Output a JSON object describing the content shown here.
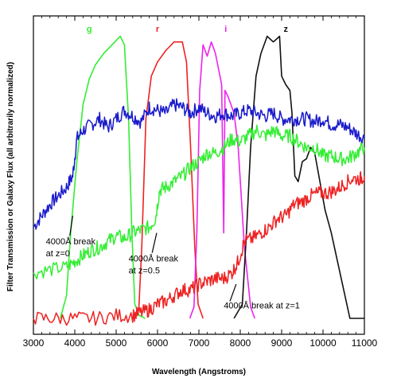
{
  "chart_data": {
    "type": "line",
    "title": "",
    "xlabel": "Wavelength (Angstroms)",
    "ylabel": "Filter Transmission or Galaxy Flux (all arbitrarily normalized)",
    "xlim": [
      3000,
      11000
    ],
    "ylim": [
      0,
      1
    ],
    "x_ticks": [
      "3000",
      "4000",
      "5000",
      "6000",
      "7000",
      "8000",
      "9000",
      "10000",
      "11000"
    ],
    "grid": false,
    "filters": [
      {
        "name": "g",
        "color": "#33ee33",
        "points": [
          [
            3650,
            0.0
          ],
          [
            3800,
            0.08
          ],
          [
            3900,
            0.3
          ],
          [
            4050,
            0.55
          ],
          [
            4200,
            0.75
          ],
          [
            4350,
            0.84
          ],
          [
            4500,
            0.89
          ],
          [
            4700,
            0.93
          ],
          [
            4900,
            0.96
          ],
          [
            5100,
            0.99
          ],
          [
            5200,
            0.96
          ],
          [
            5300,
            0.7
          ],
          [
            5380,
            0.3
          ],
          [
            5450,
            0.05
          ],
          [
            5560,
            0.01
          ],
          [
            5700,
            0.0
          ]
        ]
      },
      {
        "name": "r",
        "color": "#ee2222",
        "points": [
          [
            5450,
            0.0
          ],
          [
            5550,
            0.04
          ],
          [
            5620,
            0.25
          ],
          [
            5720,
            0.7
          ],
          [
            5850,
            0.85
          ],
          [
            6000,
            0.9
          ],
          [
            6200,
            0.94
          ],
          [
            6400,
            0.97
          ],
          [
            6600,
            0.97
          ],
          [
            6700,
            0.9
          ],
          [
            6800,
            0.6
          ],
          [
            6900,
            0.25
          ],
          [
            6980,
            0.05
          ],
          [
            7100,
            0.0
          ]
        ]
      },
      {
        "name": "i",
        "color": "#ee22ee",
        "points": [
          [
            6780,
            0.0
          ],
          [
            6880,
            0.04
          ],
          [
            6950,
            0.3
          ],
          [
            7020,
            0.8
          ],
          [
            7100,
            0.96
          ],
          [
            7200,
            0.92
          ],
          [
            7300,
            0.97
          ],
          [
            7400,
            0.93
          ],
          [
            7550,
            0.82
          ],
          [
            7600,
            0.3
          ],
          [
            7630,
            0.8
          ],
          [
            7700,
            0.78
          ],
          [
            7850,
            0.72
          ],
          [
            7950,
            0.6
          ],
          [
            8100,
            0.25
          ],
          [
            8250,
            0.04
          ],
          [
            8350,
            0.0
          ]
        ]
      },
      {
        "name": "z",
        "color": "#111111",
        "points": [
          [
            7850,
            0.0
          ],
          [
            8050,
            0.05
          ],
          [
            8150,
            0.3
          ],
          [
            8250,
            0.6
          ],
          [
            8380,
            0.85
          ],
          [
            8500,
            0.93
          ],
          [
            8650,
            0.99
          ],
          [
            8800,
            0.97
          ],
          [
            8950,
            0.99
          ],
          [
            9000,
            0.85
          ],
          [
            9100,
            0.82
          ],
          [
            9200,
            0.8
          ],
          [
            9250,
            0.72
          ],
          [
            9320,
            0.5
          ],
          [
            9400,
            0.48
          ],
          [
            9500,
            0.55
          ],
          [
            9600,
            0.56
          ],
          [
            9700,
            0.6
          ],
          [
            9800,
            0.58
          ],
          [
            9900,
            0.5
          ],
          [
            10050,
            0.38
          ],
          [
            10200,
            0.3
          ],
          [
            10350,
            0.2
          ],
          [
            10500,
            0.1
          ],
          [
            10650,
            0.0
          ],
          [
            11000,
            0.0
          ]
        ]
      }
    ],
    "series": [
      {
        "name": "z=0",
        "color": "#1a1acc",
        "points": [
          [
            3000,
            0.32
          ],
          [
            3200,
            0.36
          ],
          [
            3400,
            0.4
          ],
          [
            3600,
            0.43
          ],
          [
            3800,
            0.46
          ],
          [
            3950,
            0.5
          ],
          [
            4050,
            0.63
          ],
          [
            4200,
            0.66
          ],
          [
            4400,
            0.68
          ],
          [
            4600,
            0.7
          ],
          [
            4800,
            0.67
          ],
          [
            5000,
            0.7
          ],
          [
            5200,
            0.73
          ],
          [
            5400,
            0.71
          ],
          [
            5600,
            0.69
          ],
          [
            5800,
            0.74
          ],
          [
            6000,
            0.73
          ],
          [
            6200,
            0.72
          ],
          [
            6400,
            0.75
          ],
          [
            6600,
            0.74
          ],
          [
            6800,
            0.72
          ],
          [
            7000,
            0.74
          ],
          [
            7200,
            0.72
          ],
          [
            7400,
            0.71
          ],
          [
            7600,
            0.72
          ],
          [
            7800,
            0.71
          ],
          [
            8000,
            0.72
          ],
          [
            8200,
            0.73
          ],
          [
            8400,
            0.72
          ],
          [
            8600,
            0.71
          ],
          [
            8800,
            0.72
          ],
          [
            9000,
            0.7
          ],
          [
            9200,
            0.7
          ],
          [
            9400,
            0.7
          ],
          [
            9600,
            0.7
          ],
          [
            9800,
            0.69
          ],
          [
            10000,
            0.7
          ],
          [
            10200,
            0.68
          ],
          [
            10400,
            0.68
          ],
          [
            10600,
            0.67
          ],
          [
            10800,
            0.65
          ],
          [
            11000,
            0.63
          ]
        ]
      },
      {
        "name": "z=0.5",
        "color": "#33ee33",
        "points": [
          [
            3000,
            0.16
          ],
          [
            3400,
            0.17
          ],
          [
            3800,
            0.18
          ],
          [
            4000,
            0.2
          ],
          [
            4200,
            0.22
          ],
          [
            4400,
            0.24
          ],
          [
            4600,
            0.25
          ],
          [
            4800,
            0.27
          ],
          [
            5000,
            0.29
          ],
          [
            5200,
            0.28
          ],
          [
            5400,
            0.3
          ],
          [
            5600,
            0.31
          ],
          [
            5800,
            0.32
          ],
          [
            5950,
            0.35
          ],
          [
            6050,
            0.45
          ],
          [
            6200,
            0.46
          ],
          [
            6400,
            0.48
          ],
          [
            6600,
            0.5
          ],
          [
            6800,
            0.53
          ],
          [
            7000,
            0.55
          ],
          [
            7200,
            0.58
          ],
          [
            7400,
            0.58
          ],
          [
            7600,
            0.6
          ],
          [
            7800,
            0.63
          ],
          [
            8000,
            0.62
          ],
          [
            8200,
            0.64
          ],
          [
            8400,
            0.66
          ],
          [
            8600,
            0.64
          ],
          [
            8800,
            0.66
          ],
          [
            9000,
            0.64
          ],
          [
            9200,
            0.64
          ],
          [
            9400,
            0.62
          ],
          [
            9600,
            0.6
          ],
          [
            9800,
            0.6
          ],
          [
            10000,
            0.57
          ],
          [
            10200,
            0.57
          ],
          [
            10400,
            0.56
          ],
          [
            10600,
            0.56
          ],
          [
            10800,
            0.58
          ],
          [
            11000,
            0.6
          ]
        ]
      },
      {
        "name": "z=1",
        "color": "#ee2222",
        "points": [
          [
            3000,
            0.0
          ],
          [
            3500,
            0.0
          ],
          [
            4000,
            0.0
          ],
          [
            4500,
            0.0
          ],
          [
            5000,
            0.01
          ],
          [
            5400,
            0.01
          ],
          [
            5600,
            0.02
          ],
          [
            5800,
            0.03
          ],
          [
            6000,
            0.05
          ],
          [
            6200,
            0.06
          ],
          [
            6400,
            0.08
          ],
          [
            6600,
            0.1
          ],
          [
            6800,
            0.1
          ],
          [
            7000,
            0.12
          ],
          [
            7200,
            0.13
          ],
          [
            7400,
            0.14
          ],
          [
            7600,
            0.14
          ],
          [
            7800,
            0.16
          ],
          [
            7950,
            0.2
          ],
          [
            8100,
            0.27
          ],
          [
            8300,
            0.28
          ],
          [
            8500,
            0.3
          ],
          [
            8700,
            0.32
          ],
          [
            8900,
            0.35
          ],
          [
            9100,
            0.36
          ],
          [
            9300,
            0.4
          ],
          [
            9500,
            0.41
          ],
          [
            9700,
            0.43
          ],
          [
            9900,
            0.44
          ],
          [
            10100,
            0.44
          ],
          [
            10300,
            0.45
          ],
          [
            10500,
            0.47
          ],
          [
            10700,
            0.49
          ],
          [
            10900,
            0.49
          ],
          [
            11000,
            0.5
          ]
        ]
      }
    ],
    "annotations": [
      {
        "lines": [
          "4000Å break",
          "at z=0"
        ],
        "arrow_from": [
          3880,
          0.29
        ],
        "arrow_to": [
          3950,
          0.36
        ],
        "text_at": [
          3300,
          0.26
        ]
      },
      {
        "lines": [
          "4000Å break",
          "at z=0.5"
        ],
        "arrow_from": [
          5870,
          0.23
        ],
        "arrow_to": [
          5980,
          0.3
        ],
        "text_at": [
          5300,
          0.2
        ]
      },
      {
        "lines": [
          "4000Å break at z=1"
        ],
        "arrow_from": [
          7750,
          0.06
        ],
        "arrow_to": [
          7900,
          0.12
        ],
        "text_at": [
          7600,
          0.035
        ]
      }
    ]
  }
}
